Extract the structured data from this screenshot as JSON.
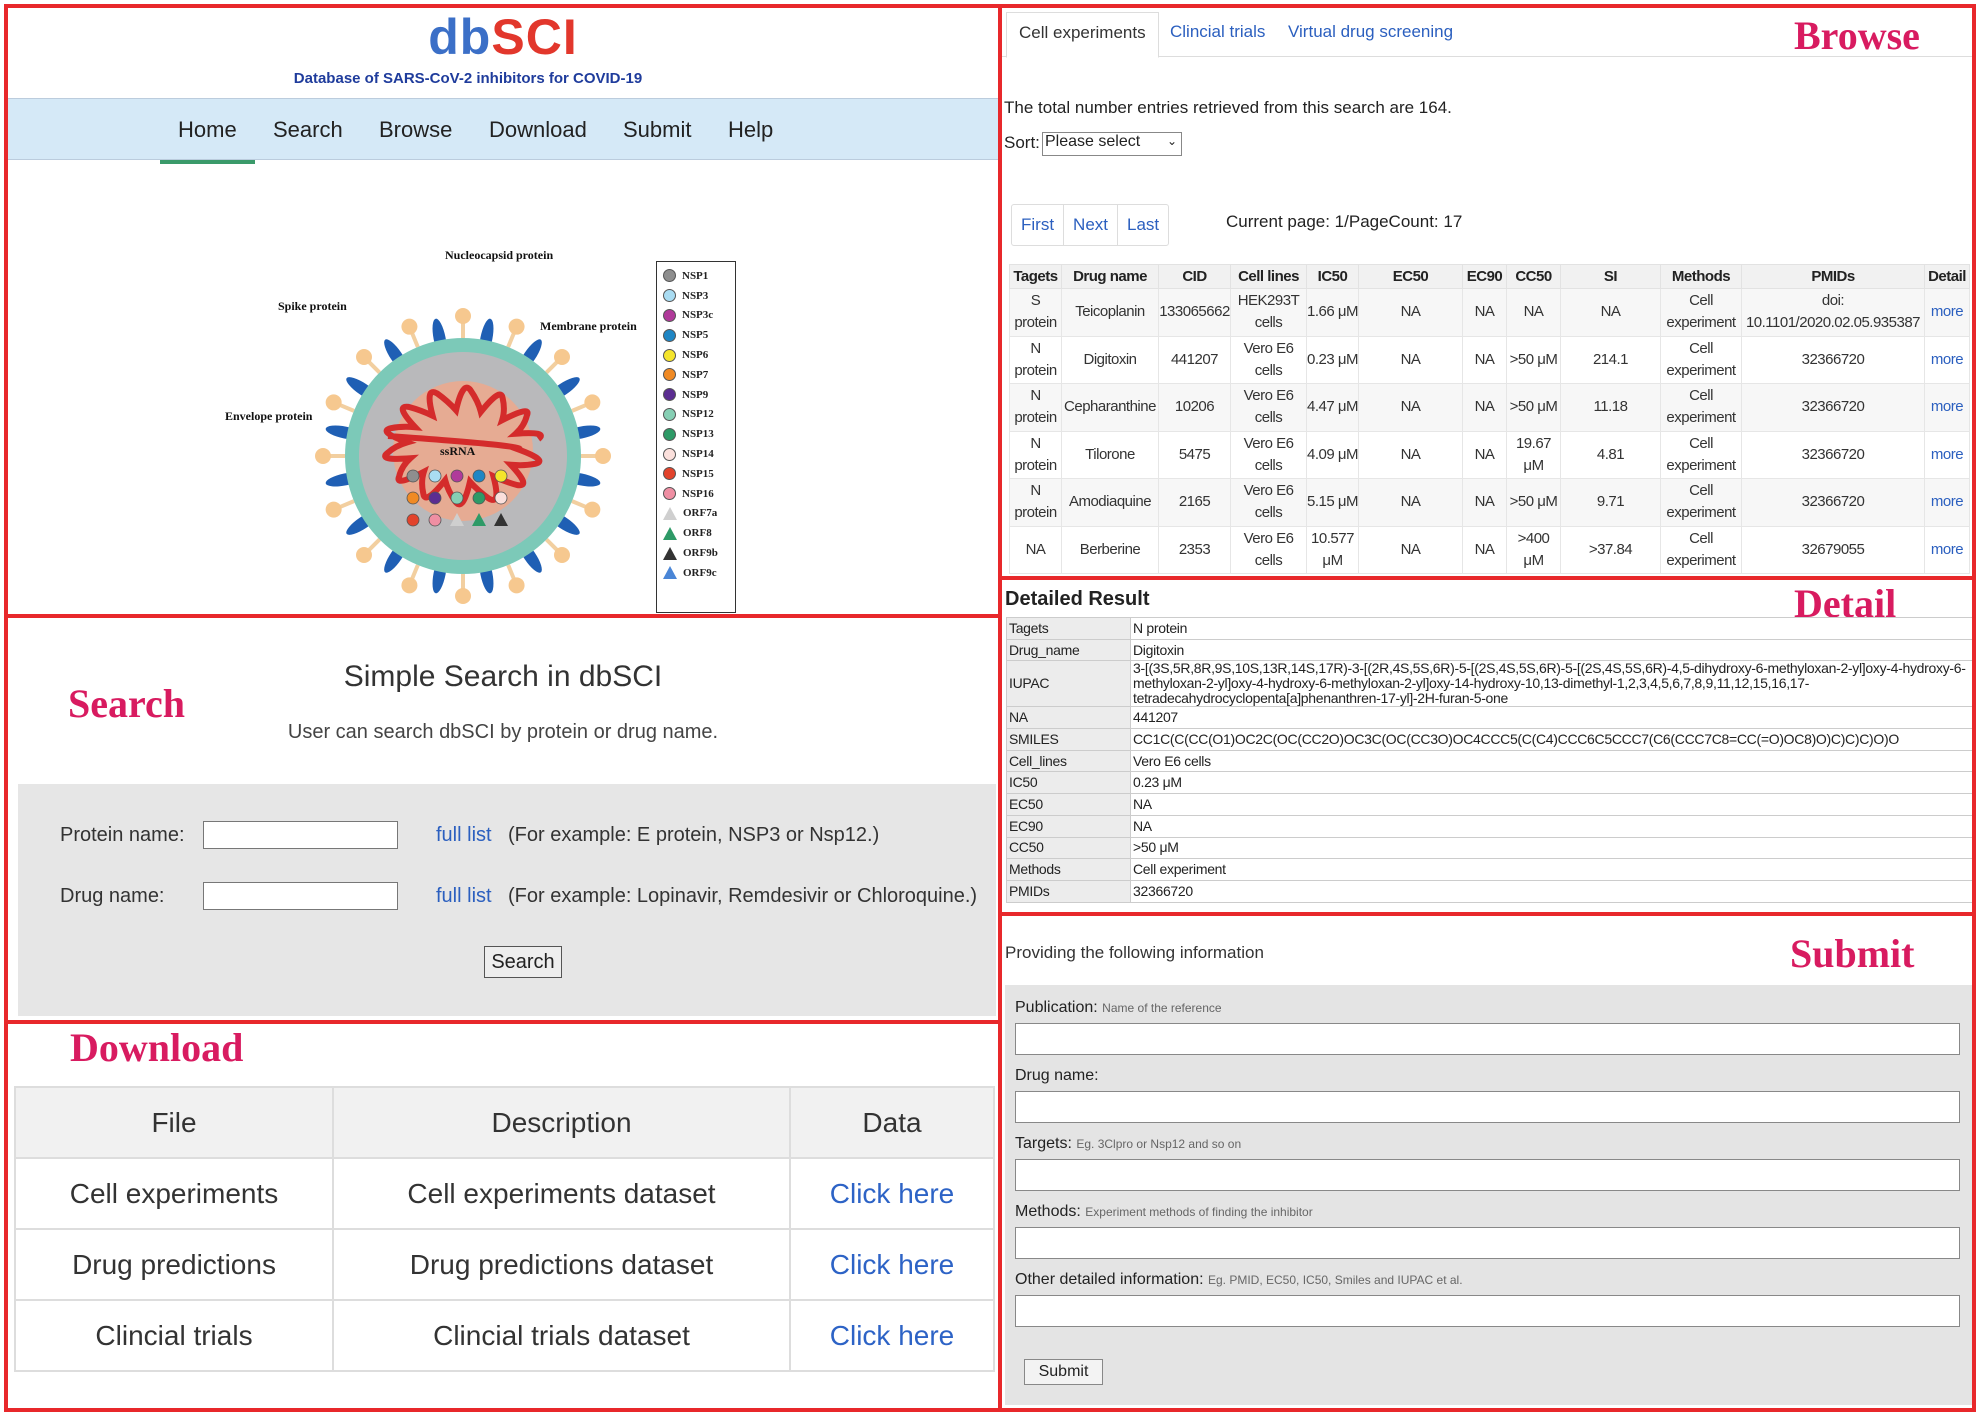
{
  "panel_labels": {
    "browse": "Browse",
    "search": "Search",
    "detail": "Detail",
    "download": "Download",
    "submit": "Submit"
  },
  "header": {
    "logo_db": "db",
    "logo_sci": "SCI",
    "subtitle": "Database of SARS-CoV-2 inhibitors for COVID-19"
  },
  "nav": [
    "Home",
    "Search",
    "Browse",
    "Download",
    "Submit",
    "Help"
  ],
  "figure": {
    "labels": {
      "nucleocapsid": "Nucleocapsid protein",
      "spike": "Spike protein",
      "membrane": "Membrane protein",
      "envelope": "Envelope protein",
      "ssrna": "ssRNA"
    },
    "legend": [
      {
        "label": "NSP1",
        "color": "#8e8e8e",
        "shape": "circle"
      },
      {
        "label": "NSP3",
        "color": "#a9dcf2",
        "shape": "circle"
      },
      {
        "label": "NSP3c",
        "color": "#b03a9a",
        "shape": "circle"
      },
      {
        "label": "NSP5",
        "color": "#1f86c4",
        "shape": "circle"
      },
      {
        "label": "NSP6",
        "color": "#f5e52c",
        "shape": "circle"
      },
      {
        "label": "NSP7",
        "color": "#f08a24",
        "shape": "circle"
      },
      {
        "label": "NSP9",
        "color": "#5b2d91",
        "shape": "circle"
      },
      {
        "label": "NSP12",
        "color": "#86cfb4",
        "shape": "circle"
      },
      {
        "label": "NSP13",
        "color": "#2e9a67",
        "shape": "circle"
      },
      {
        "label": "NSP14",
        "color": "#fbe0dc",
        "shape": "circle"
      },
      {
        "label": "NSP15",
        "color": "#e2432c",
        "shape": "circle"
      },
      {
        "label": "NSP16",
        "color": "#ef8fa3",
        "shape": "circle"
      },
      {
        "label": "ORF7a",
        "color": "#cfcfcf",
        "shape": "triangle"
      },
      {
        "label": "ORF8",
        "color": "#2e9a67",
        "shape": "triangle"
      },
      {
        "label": "ORF9b",
        "color": "#333333",
        "shape": "triangle"
      },
      {
        "label": "ORF9c",
        "color": "#4a86d6",
        "shape": "triangle"
      }
    ]
  },
  "search": {
    "title": "Simple Search in dbSCI",
    "description": "User can search dbSCI by protein or drug name.",
    "protein_label": "Protein name:",
    "protein_value": "",
    "drug_label": "Drug name:",
    "drug_value": "",
    "full_list": "full list",
    "protein_example": "(For example: E protein, NSP3 or Nsp12.)",
    "drug_example": "(For example: Lopinavir, Remdesivir or Chloroquine.)",
    "button": "Search"
  },
  "download": {
    "headers": [
      "File",
      "Description",
      "Data"
    ],
    "rows": [
      [
        "Cell experiments",
        "Cell experiments dataset",
        "Click here"
      ],
      [
        "Drug predictions",
        "Drug predictions dataset",
        "Click here"
      ],
      [
        "Clincial trials",
        "Clincial trials dataset",
        "Click here"
      ]
    ]
  },
  "browse": {
    "tabs": [
      "Cell experiments",
      "Clincial trials",
      "Virtual drug screening"
    ],
    "total_text": "The total number entries retrieved from this search are 164.",
    "sort_label": "Sort:",
    "sort_value": "Please select",
    "pager": [
      "First",
      "Next",
      "Last"
    ],
    "current_page": "Current page: 1/PageCount: 17",
    "headers": [
      "Tagets",
      "Drug name",
      "CID",
      "Cell lines",
      "IC50",
      "EC50",
      "EC90",
      "CC50",
      "SI",
      "Methods",
      "PMIDs",
      "Detail"
    ],
    "rows": [
      [
        "S protein",
        "Teicoplanin",
        "133065662",
        "HEK293T cells",
        "1.66 μM",
        "NA",
        "NA",
        "NA",
        "NA",
        "Cell experiment",
        "doi: 10.1101/2020.02.05.935387",
        "more"
      ],
      [
        "N protein",
        "Digitoxin",
        "441207",
        "Vero E6 cells",
        "0.23 μM",
        "NA",
        "NA",
        ">50 μM",
        "214.1",
        "Cell experiment",
        "32366720",
        "more"
      ],
      [
        "N protein",
        "Cepharanthine",
        "10206",
        "Vero E6 cells",
        "4.47 μM",
        "NA",
        "NA",
        ">50 μM",
        "11.18",
        "Cell experiment",
        "32366720",
        "more"
      ],
      [
        "N protein",
        "Tilorone",
        "5475",
        "Vero E6 cells",
        "4.09 μM",
        "NA",
        "NA",
        "19.67 μM",
        "4.81",
        "Cell experiment",
        "32366720",
        "more"
      ],
      [
        "N protein",
        "Amodiaquine",
        "2165",
        "Vero E6 cells",
        "5.15 μM",
        "NA",
        "NA",
        ">50 μM",
        "9.71",
        "Cell experiment",
        "32366720",
        "more"
      ],
      [
        "NA",
        "Berberine",
        "2353",
        "Vero E6 cells",
        "10.577 μM",
        "NA",
        "NA",
        ">400 μM",
        ">37.84",
        "Cell experiment",
        "32679055",
        "more"
      ]
    ]
  },
  "detail": {
    "title": "Detailed Result",
    "rows": [
      [
        "Tagets",
        "N protein"
      ],
      [
        "Drug_name",
        "Digitoxin"
      ],
      [
        "IUPAC",
        "3-[(3S,5R,8R,9S,10S,13R,14S,17R)-3-[(2R,4S,5S,6R)-5-[(2S,4S,5S,6R)-5-[(2S,4S,5S,6R)-4,5-dihydroxy-6-methyloxan-2-yl]oxy-4-hydroxy-6-methyloxan-2-yl]oxy-4-hydroxy-6-methyloxan-2-yl]oxy-14-hydroxy-10,13-dimethyl-1,2,3,4,5,6,7,8,9,11,12,15,16,17-tetradecahydrocyclopenta[a]phenanthren-17-yl]-2H-furan-5-one"
      ],
      [
        "NA",
        "441207"
      ],
      [
        "SMILES",
        "CC1C(C(CC(O1)OC2C(OC(CC2O)OC3C(OC(CC3O)OC4CCC5(C(C4)CCC6C5CCC7(C6(CCC7C8=CC(=O)OC8)O)C)C)C)O)O"
      ],
      [
        "Cell_lines",
        "Vero E6 cells"
      ],
      [
        "IC50",
        "0.23 μM"
      ],
      [
        "EC50",
        "NA"
      ],
      [
        "EC90",
        "NA"
      ],
      [
        "CC50",
        ">50 μM"
      ],
      [
        "Methods",
        "Cell experiment"
      ],
      [
        "PMIDs",
        "32366720"
      ]
    ]
  },
  "submit": {
    "description": "Providing the following information",
    "fields": [
      {
        "label": "Publication:",
        "hint": "Name of the reference",
        "value": ""
      },
      {
        "label": "Drug name:",
        "hint": "",
        "value": ""
      },
      {
        "label": "Targets:",
        "hint": "Eg. 3Clpro or Nsp12 and so on",
        "value": ""
      },
      {
        "label": "Methods:",
        "hint": "Experiment methods of finding the inhibitor",
        "value": ""
      },
      {
        "label": "Other detailed information:",
        "hint": "Eg. PMID, EC50, IC50, Smiles and IUPAC et al.",
        "value": ""
      }
    ],
    "button": "Submit"
  }
}
